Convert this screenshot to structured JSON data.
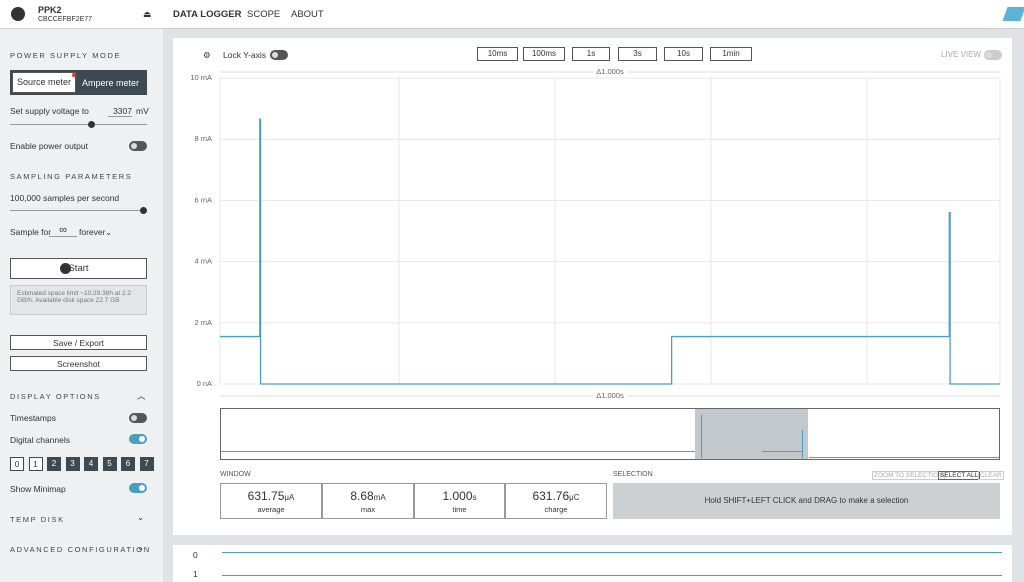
{
  "header": {
    "device": "PPK2",
    "serial": "CBCCEFBF2E77",
    "tabs": [
      "DATA LOGGER",
      "SCOPE",
      "ABOUT"
    ]
  },
  "sidebar": {
    "power_supply_mode": "POWER SUPPLY MODE",
    "modes": [
      "Source meter",
      "Ampere meter"
    ],
    "supply_label": "Set supply voltage to",
    "supply_value": "3307",
    "supply_unit": "mV",
    "enable_output": "Enable power output",
    "sampling_title": "SAMPLING PARAMETERS",
    "sample_rate": "100,000 samples per second",
    "sample_for": "Sample for",
    "sample_for_value": "∞",
    "sample_for_unit": "forever",
    "start": "Start",
    "estimate": "Estimated space limit ~10:29:38h at 2.2 GB/h. Available disk space 22.7 GB",
    "save": "Save / Export",
    "screenshot": "Screenshot",
    "display_title": "DISPLAY OPTIONS",
    "timestamps": "Timestamps",
    "digital_channels": "Digital channels",
    "channels": [
      "0",
      "1",
      "2",
      "3",
      "4",
      "5",
      "6",
      "7"
    ],
    "show_minimap": "Show Minimap",
    "temp_disk": "TEMP DISK",
    "advanced": "ADVANCED CONFIGURATION"
  },
  "toolbar": {
    "lock": "Lock Y-axis",
    "windows": [
      "10ms",
      "100ms",
      "1s",
      "3s",
      "10s",
      "1min"
    ],
    "live": "LIVE VIEW"
  },
  "chart_data": {
    "type": "line",
    "annotation": "Δ1.000s",
    "xlim": [
      0,
      1
    ],
    "ylim": [
      0,
      10
    ],
    "yticks": [
      {
        "value": 0,
        "label": "0 nA"
      },
      {
        "value": 2,
        "label": "2 mA"
      },
      {
        "value": 4,
        "label": "4 mA"
      },
      {
        "value": 6,
        "label": "6 mA"
      },
      {
        "value": 8,
        "label": "8 mA"
      },
      {
        "value": 10,
        "label": "10 mA"
      }
    ],
    "grid": true,
    "series": [
      {
        "color": "#4a9fc0",
        "x": [
          0,
          0.051,
          0.051,
          0.052,
          0.052,
          0.579,
          0.579,
          0.935,
          0.935,
          0.936,
          0.936,
          1.0
        ],
        "values": [
          1.55,
          1.55,
          8.65,
          8.65,
          0,
          0,
          1.55,
          1.55,
          5.6,
          5.6,
          0,
          0
        ]
      }
    ]
  },
  "window": {
    "title": "WINDOW",
    "stats": [
      {
        "value": "631.75",
        "unit": "μA",
        "label": "average"
      },
      {
        "value": "8.68",
        "unit": "mA",
        "label": "max"
      },
      {
        "value": "1.000",
        "unit": "s",
        "label": "time"
      },
      {
        "value": "631.76",
        "unit": "μC",
        "label": "charge"
      }
    ]
  },
  "selection": {
    "title": "SELECTION",
    "buttons": [
      "ZOOM TO SELECTION",
      "SELECT ALL",
      "CLEAR"
    ],
    "hint": "Hold SHIFT+LEFT CLICK and DRAG to make a selection"
  },
  "digital": [
    "0",
    "1"
  ]
}
